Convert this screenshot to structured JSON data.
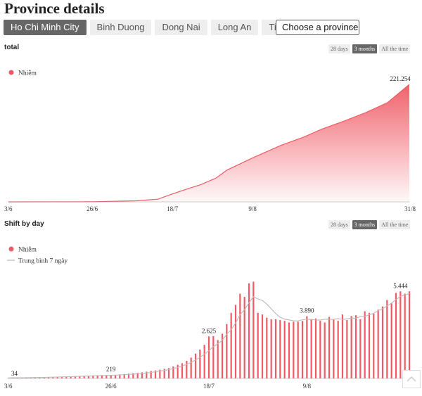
{
  "page": {
    "title": "Province details"
  },
  "tabs": [
    {
      "label": "Ho Chi Minh City",
      "active": true
    },
    {
      "label": "Binh Duong",
      "active": false
    },
    {
      "label": "Dong Nai",
      "active": false
    },
    {
      "label": "Long An",
      "active": false
    },
    {
      "label": "Tien Giang",
      "active": false
    }
  ],
  "province_select": {
    "value": "Choose a province"
  },
  "range_buttons": [
    {
      "label": "28 days",
      "active": false
    },
    {
      "label": "3 months",
      "active": true
    },
    {
      "label": "All the time",
      "active": false
    }
  ],
  "colors": {
    "accent": "#ef5a64",
    "average": "#bbbbbb"
  },
  "chart_data": [
    {
      "type": "area",
      "section_label": "total",
      "legend": [
        {
          "name": "Nhiễm",
          "color": "#ef5a64"
        }
      ],
      "x_ticks": [
        "3/6",
        "26/6",
        "18/7",
        "9/8",
        "31/8"
      ],
      "x_start": "3/6",
      "x_end": "31/8",
      "y_range": [
        0,
        221254
      ],
      "end_label": "221.254",
      "points": [
        [
          0,
          0
        ],
        [
          23,
          300
        ],
        [
          35,
          2000
        ],
        [
          41,
          5000
        ],
        [
          45,
          15000
        ],
        [
          48,
          22000
        ],
        [
          53,
          33000
        ],
        [
          57,
          45000
        ],
        [
          60,
          60000
        ],
        [
          64,
          73000
        ],
        [
          67,
          83000
        ],
        [
          71,
          95000
        ],
        [
          75,
          107000
        ],
        [
          81,
          122000
        ],
        [
          86,
          137000
        ],
        [
          92,
          152000
        ],
        [
          98,
          168000
        ],
        [
          104,
          187000
        ],
        [
          110,
          221254
        ]
      ]
    },
    {
      "type": "bar",
      "section_label": "Shift by day",
      "legend": [
        {
          "name": "Nhiễm",
          "color": "#ef5a64"
        },
        {
          "name": "Trung bình 7 ngày",
          "color": "#bbbbbb"
        }
      ],
      "x_ticks": [
        "3/6",
        "26/6",
        "18/7",
        "9/8",
        "31/8"
      ],
      "x_start": "3/6",
      "x_end": "31/8",
      "y_range": [
        0,
        6600
      ],
      "annotations": [
        {
          "day": 0,
          "label": "34"
        },
        {
          "day": 23,
          "label": "219"
        },
        {
          "day": 45,
          "label": "2.625"
        },
        {
          "day": 67,
          "label": "3.890"
        },
        {
          "day": 88,
          "label": "5.444"
        }
      ],
      "daily_values": [
        34,
        40,
        45,
        42,
        50,
        55,
        60,
        70,
        75,
        85,
        95,
        100,
        110,
        120,
        130,
        140,
        150,
        160,
        175,
        190,
        200,
        210,
        215,
        219,
        220,
        250,
        270,
        300,
        330,
        350,
        380,
        420,
        460,
        500,
        540,
        600,
        650,
        750,
        850,
        950,
        1100,
        1300,
        1550,
        1800,
        2100,
        2625,
        2650,
        2400,
        2800,
        3400,
        4100,
        4600,
        5300,
        5100,
        5950,
        6050,
        4100,
        4000,
        3800,
        3700,
        3700,
        3650,
        3600,
        3500,
        3550,
        3550,
        3600,
        3890,
        3700,
        3750,
        3600,
        3500,
        3850,
        3700,
        3600,
        4000,
        3650,
        3900,
        3950,
        3700,
        4200,
        4100,
        4050,
        4300,
        4500,
        4900,
        4700,
        5350,
        5444,
        5300,
        5450
      ],
      "average_7d": [
        34,
        38,
        42,
        45,
        48,
        52,
        57,
        62,
        67,
        73,
        80,
        87,
        95,
        103,
        112,
        121,
        130,
        139,
        149,
        159,
        170,
        180,
        191,
        200,
        209,
        220,
        234,
        251,
        269,
        289,
        312,
        341,
        376,
        415,
        457,
        503,
        555,
        614,
        686,
        773,
        877,
        1000,
        1150,
        1323,
        1521,
        1736,
        1988,
        2161,
        2389,
        2761,
        3050,
        3470,
        3990,
        4300,
        4730,
        5105,
        4970,
        4876,
        4651,
        4351,
        4057,
        3829,
        3708,
        3661,
        3604,
        3593,
        3675,
        3701,
        3688,
        3654,
        3648,
        3705,
        3703,
        3686,
        3745,
        3686,
        3728,
        3769,
        3767,
        3863,
        3883,
        3977,
        4075,
        4234,
        4356,
        4538,
        4711,
        4932,
        5125,
        5218,
        5312
      ]
    }
  ]
}
